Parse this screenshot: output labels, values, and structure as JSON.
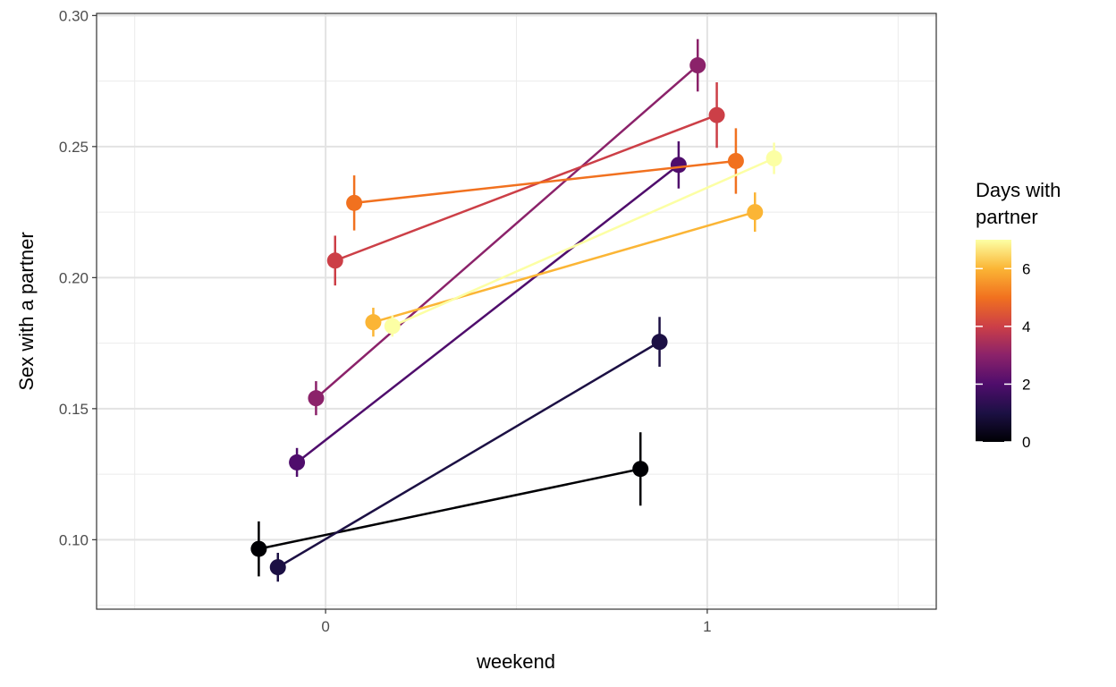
{
  "chart_data": {
    "type": "line",
    "xlabel": "weekend",
    "ylabel": "Sex with a partner",
    "xlim": [
      -0.6,
      1.6
    ],
    "ylim": [
      0.0735,
      0.3008
    ],
    "x_ticks": [
      0,
      1
    ],
    "y_ticks": [
      0.1,
      0.15,
      0.2,
      0.25,
      0.3
    ],
    "y_tick_labels": [
      "0.10",
      "0.15",
      "0.20",
      "0.25",
      "0.30"
    ],
    "grid": true,
    "legend": {
      "title_line1": "Days with",
      "title_line2": "partner",
      "placement": "right",
      "min": 0,
      "max": 7,
      "ticks": [
        0,
        2,
        4,
        6
      ],
      "colormap": "inferno"
    },
    "series": [
      {
        "days": 0,
        "color": "#000004",
        "points": [
          {
            "x": -0.175,
            "y": 0.0965,
            "lo": 0.086,
            "hi": 0.107
          },
          {
            "x": 0.825,
            "y": 0.127,
            "lo": 0.113,
            "hi": 0.141
          }
        ]
      },
      {
        "days": 1,
        "color": "#1c1044",
        "points": [
          {
            "x": -0.125,
            "y": 0.0895,
            "lo": 0.084,
            "hi": 0.095
          },
          {
            "x": 0.875,
            "y": 0.1755,
            "lo": 0.166,
            "hi": 0.185
          }
        ]
      },
      {
        "days": 2,
        "color": "#4f0d6c",
        "points": [
          {
            "x": -0.075,
            "y": 0.1295,
            "lo": 0.124,
            "hi": 0.135
          },
          {
            "x": 0.925,
            "y": 0.243,
            "lo": 0.234,
            "hi": 0.252
          }
        ]
      },
      {
        "days": 3,
        "color": "#8b226a",
        "points": [
          {
            "x": -0.025,
            "y": 0.154,
            "lo": 0.1475,
            "hi": 0.1605
          },
          {
            "x": 0.975,
            "y": 0.281,
            "lo": 0.271,
            "hi": 0.291
          }
        ]
      },
      {
        "days": 4,
        "color": "#cc3f47",
        "points": [
          {
            "x": 0.025,
            "y": 0.2065,
            "lo": 0.197,
            "hi": 0.216
          },
          {
            "x": 1.025,
            "y": 0.262,
            "lo": 0.2495,
            "hi": 0.2745
          }
        ]
      },
      {
        "days": 5,
        "color": "#f1711f",
        "points": [
          {
            "x": 0.075,
            "y": 0.2285,
            "lo": 0.218,
            "hi": 0.239
          },
          {
            "x": 1.075,
            "y": 0.2445,
            "lo": 0.232,
            "hi": 0.257
          }
        ]
      },
      {
        "days": 6,
        "color": "#fbb535",
        "points": [
          {
            "x": 0.125,
            "y": 0.183,
            "lo": 0.1775,
            "hi": 0.1885
          },
          {
            "x": 1.125,
            "y": 0.225,
            "lo": 0.2175,
            "hi": 0.2325
          }
        ]
      },
      {
        "days": 7,
        "color": "#fcffa4",
        "points": [
          {
            "x": 0.175,
            "y": 0.1815,
            "lo": 0.1775,
            "hi": 0.1855
          },
          {
            "x": 1.175,
            "y": 0.2455,
            "lo": 0.2395,
            "hi": 0.2515
          }
        ]
      }
    ]
  }
}
